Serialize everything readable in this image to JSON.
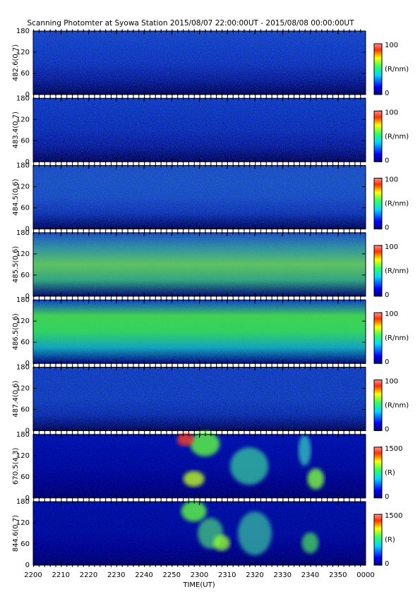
{
  "title": "Scanning Photomter at Syowa Station 2015/08/07 22:00:00UT - 2015/08/08 00:00:00UT",
  "x_axis": {
    "label": "TIME(UT)",
    "xlim": [
      0,
      120
    ],
    "xticks": [
      {
        "value": 0,
        "label": "2200"
      },
      {
        "value": 10,
        "label": "2210"
      },
      {
        "value": 20,
        "label": "2220"
      },
      {
        "value": 30,
        "label": "2230"
      },
      {
        "value": 40,
        "label": "2240"
      },
      {
        "value": 50,
        "label": "2250"
      },
      {
        "value": 60,
        "label": "2300"
      },
      {
        "value": 70,
        "label": "2310"
      },
      {
        "value": 80,
        "label": "2320"
      },
      {
        "value": 90,
        "label": "2330"
      },
      {
        "value": 100,
        "label": "2340"
      },
      {
        "value": 110,
        "label": "2350"
      },
      {
        "value": 120,
        "label": "0000"
      }
    ]
  },
  "chart_data": [
    {
      "type": "heatmap",
      "ylabel": "482.6(0.7)",
      "ylim": [
        0,
        180
      ],
      "yticks": [
        0,
        60,
        120,
        180
      ],
      "clim": [
        0,
        100
      ],
      "cticks": [
        0,
        100
      ],
      "colorbar_label": "(R/nm)"
    },
    {
      "type": "heatmap",
      "ylabel": "483.4(0.7)",
      "ylim": [
        0,
        180
      ],
      "yticks": [
        0,
        60,
        120,
        180
      ],
      "clim": [
        0,
        100
      ],
      "cticks": [
        0,
        100
      ],
      "colorbar_label": "(R/nm)"
    },
    {
      "type": "heatmap",
      "ylabel": "484.5(0.6)",
      "ylim": [
        0,
        180
      ],
      "yticks": [
        0,
        60,
        120,
        180
      ],
      "clim": [
        0,
        100
      ],
      "cticks": [
        0,
        100
      ],
      "colorbar_label": "(R/nm)"
    },
    {
      "type": "heatmap",
      "ylabel": "485.5(0.6)",
      "ylim": [
        0,
        180
      ],
      "yticks": [
        0,
        60,
        120,
        180
      ],
      "clim": [
        0,
        100
      ],
      "cticks": [
        0,
        100
      ],
      "colorbar_label": "(R/nm)"
    },
    {
      "type": "heatmap",
      "ylabel": "486.5(0.6)",
      "ylim": [
        0,
        180
      ],
      "yticks": [
        0,
        60,
        120,
        180
      ],
      "clim": [
        0,
        100
      ],
      "cticks": [
        0,
        100
      ],
      "colorbar_label": "(R/nm)"
    },
    {
      "type": "heatmap",
      "ylabel": "487.4(0.6)",
      "ylim": [
        0,
        180
      ],
      "yticks": [
        0,
        60,
        120,
        180
      ],
      "clim": [
        0,
        100
      ],
      "cticks": [
        0,
        100
      ],
      "colorbar_label": "(R/nm)"
    },
    {
      "type": "heatmap",
      "ylabel": "670.5(4.3)",
      "ylim": [
        0,
        180
      ],
      "yticks": [
        0,
        60,
        120,
        180
      ],
      "clim": [
        0,
        1500
      ],
      "cticks": [
        0,
        1500
      ],
      "colorbar_label": "(R)"
    },
    {
      "type": "heatmap",
      "ylabel": "844.6(0.7)",
      "ylim": [
        0,
        180
      ],
      "yticks": [
        0,
        60,
        120,
        180
      ],
      "clim": [
        0,
        1500
      ],
      "cticks": [
        0,
        1500
      ],
      "colorbar_label": "(R)"
    }
  ]
}
